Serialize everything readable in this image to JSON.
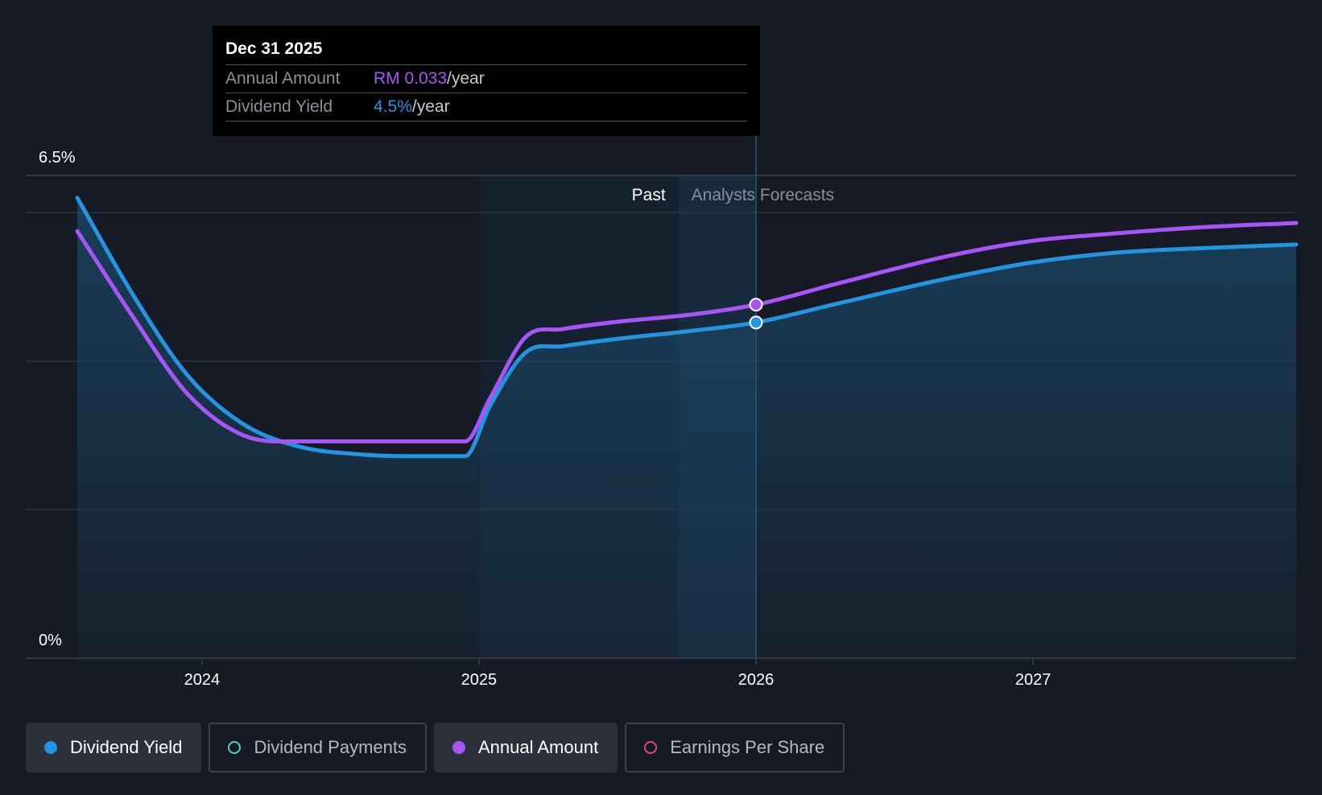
{
  "tooltip": {
    "date": "Dec 31 2025",
    "annual_label": "Annual Amount",
    "annual_value": "RM 0.033",
    "annual_unit": "/year",
    "yield_label": "Dividend Yield",
    "yield_value": "4.5%",
    "yield_unit": "/year"
  },
  "legend": [
    {
      "label": "Dividend Yield",
      "color": "#2394df",
      "active": true,
      "filled": true
    },
    {
      "label": "Dividend Payments",
      "color": "#4fd1c5",
      "active": false,
      "filled": false
    },
    {
      "label": "Annual Amount",
      "color": "#a855f7",
      "active": true,
      "filled": true
    },
    {
      "label": "Earnings Per Share",
      "color": "#e0457b",
      "active": false,
      "filled": false
    }
  ],
  "chart_data": {
    "type": "line",
    "title": "",
    "y_tick_labels": [
      "6.5%",
      "0%"
    ],
    "ylim": [
      0,
      6.5
    ],
    "xlim": [
      2023.55,
      2027.95
    ],
    "x_ticks": [
      2024,
      2025,
      2026,
      2027
    ],
    "x_tick_labels": [
      "2024",
      "2025",
      "2026",
      "2027"
    ],
    "grid_values": [
      2,
      4,
      6
    ],
    "past_start": 2025.0,
    "forecast_start": 2025.72,
    "hover_x": 2026.0,
    "past_label": "Past",
    "forecast_label": "Analysts Forecasts",
    "colors": {
      "yield": "#2394df",
      "annual": "#a855f7",
      "grid": "#2c323c"
    },
    "series": [
      {
        "name": "Dividend Yield",
        "color": "#2394df",
        "area": true,
        "x": [
          2023.55,
          2023.75,
          2023.95,
          2024.15,
          2024.35,
          2024.55,
          2024.75,
          2024.95,
          2025.04,
          2025.17,
          2025.3,
          2025.5,
          2025.75,
          2026.0,
          2026.3,
          2026.7,
          2027.0,
          2027.3,
          2027.6,
          2027.95
        ],
        "y": [
          6.2,
          4.9,
          3.8,
          3.15,
          2.85,
          2.75,
          2.72,
          2.72,
          3.4,
          4.12,
          4.2,
          4.3,
          4.4,
          4.52,
          4.78,
          5.12,
          5.33,
          5.46,
          5.52,
          5.57
        ]
      },
      {
        "name": "Annual Amount",
        "color": "#a855f7",
        "area": false,
        "x": [
          2023.55,
          2023.75,
          2023.95,
          2024.15,
          2024.35,
          2024.55,
          2024.75,
          2024.95,
          2025.04,
          2025.17,
          2025.3,
          2025.5,
          2025.75,
          2026.0,
          2026.3,
          2026.7,
          2027.0,
          2027.3,
          2027.6,
          2027.95
        ],
        "y": [
          5.75,
          4.6,
          3.55,
          3.0,
          2.92,
          2.92,
          2.92,
          2.92,
          3.5,
          4.33,
          4.43,
          4.53,
          4.62,
          4.76,
          5.05,
          5.42,
          5.62,
          5.72,
          5.8,
          5.86
        ]
      }
    ],
    "hover_points": [
      {
        "series": "Annual Amount",
        "x": 2026.0,
        "y": 4.76
      },
      {
        "series": "Dividend Yield",
        "x": 2026.0,
        "y": 4.52
      }
    ]
  }
}
